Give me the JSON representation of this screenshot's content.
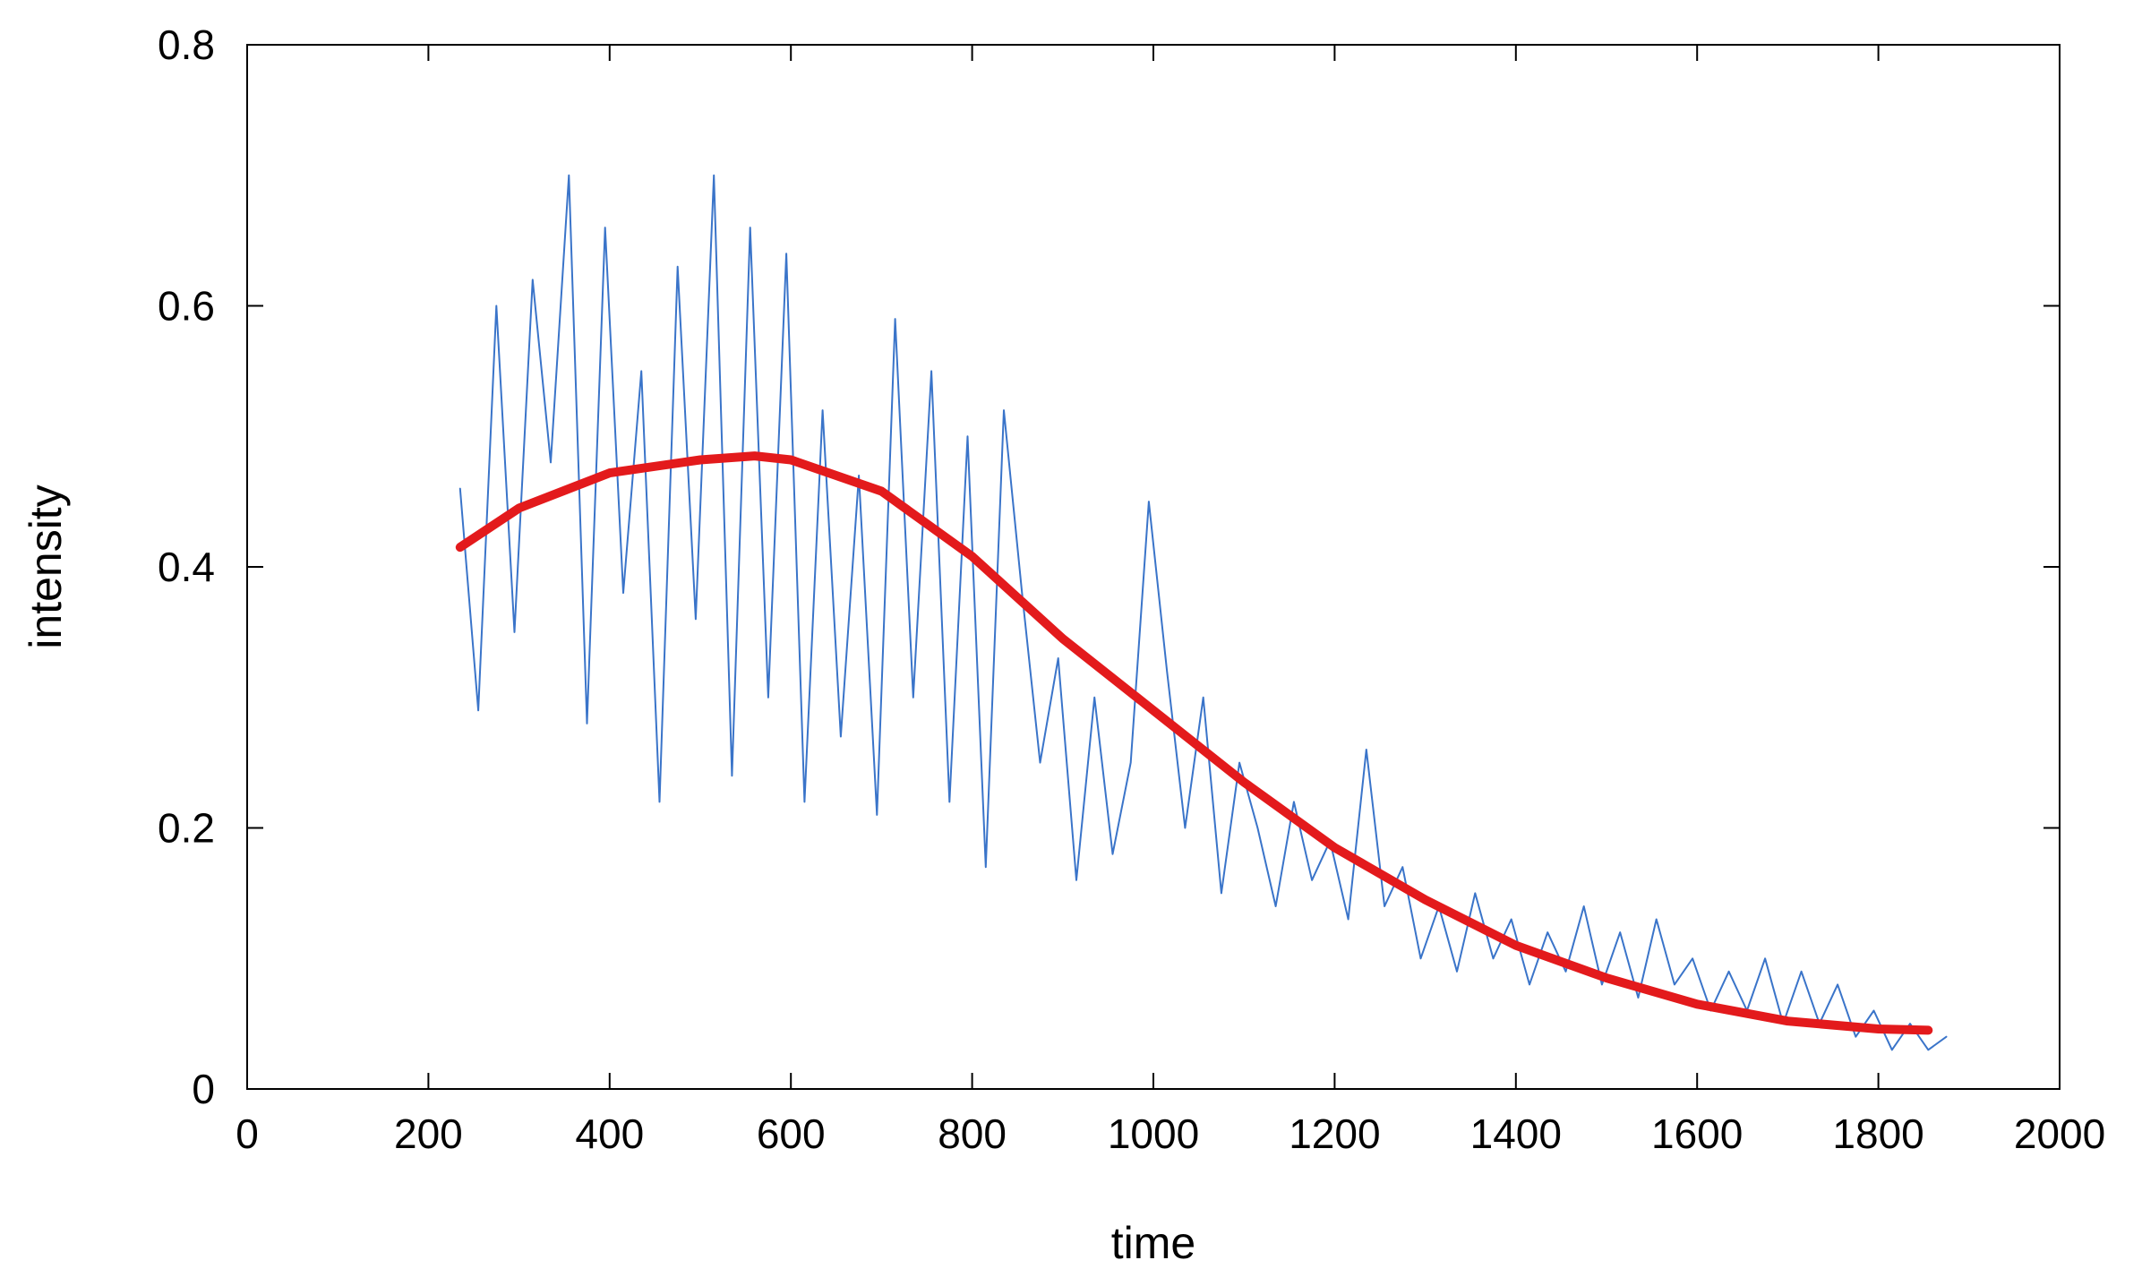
{
  "chart_data": {
    "type": "line",
    "xlabel": "time",
    "ylabel": "intensity",
    "xlim": [
      0,
      2000
    ],
    "xticks": [
      0,
      200,
      400,
      600,
      800,
      1000,
      1200,
      1400,
      1600,
      1800,
      2000
    ],
    "ylim": [
      0,
      0.8
    ],
    "yticks": [
      0,
      0.2,
      0.4,
      0.6,
      0.8
    ],
    "grid": false,
    "series": [
      {
        "color": "#3a74c9",
        "width": 2,
        "x": [
          235,
          255,
          275,
          295,
          315,
          335,
          355,
          375,
          395,
          415,
          435,
          455,
          475,
          495,
          515,
          535,
          555,
          575,
          595,
          615,
          635,
          655,
          675,
          695,
          715,
          735,
          755,
          775,
          795,
          815,
          835,
          855,
          875,
          895,
          915,
          935,
          955,
          975,
          995,
          1015,
          1035,
          1055,
          1075,
          1095,
          1115,
          1135,
          1155,
          1175,
          1195,
          1215,
          1235,
          1255,
          1275,
          1295,
          1315,
          1335,
          1355,
          1375,
          1395,
          1415,
          1435,
          1455,
          1475,
          1495,
          1515,
          1535,
          1555,
          1575,
          1595,
          1615,
          1635,
          1655,
          1675,
          1695,
          1715,
          1735,
          1755,
          1775,
          1795,
          1815,
          1835,
          1855,
          1875
        ],
        "values": [
          0.46,
          0.29,
          0.6,
          0.35,
          0.62,
          0.48,
          0.7,
          0.28,
          0.66,
          0.38,
          0.55,
          0.22,
          0.63,
          0.36,
          0.7,
          0.24,
          0.66,
          0.3,
          0.64,
          0.22,
          0.52,
          0.27,
          0.47,
          0.21,
          0.59,
          0.3,
          0.55,
          0.22,
          0.5,
          0.17,
          0.52,
          0.38,
          0.25,
          0.33,
          0.16,
          0.3,
          0.18,
          0.25,
          0.45,
          0.32,
          0.2,
          0.3,
          0.15,
          0.25,
          0.2,
          0.14,
          0.22,
          0.16,
          0.19,
          0.13,
          0.26,
          0.14,
          0.17,
          0.1,
          0.14,
          0.09,
          0.15,
          0.1,
          0.13,
          0.08,
          0.12,
          0.09,
          0.14,
          0.08,
          0.12,
          0.07,
          0.13,
          0.08,
          0.1,
          0.06,
          0.09,
          0.06,
          0.1,
          0.05,
          0.09,
          0.05,
          0.08,
          0.04,
          0.06,
          0.03,
          0.05,
          0.03,
          0.04
        ]
      },
      {
        "color": "#e31a1c",
        "width": 10,
        "x": [
          235,
          300,
          400,
          500,
          560,
          600,
          700,
          800,
          900,
          1000,
          1100,
          1200,
          1300,
          1400,
          1500,
          1600,
          1700,
          1800,
          1855
        ],
        "values": [
          0.415,
          0.445,
          0.472,
          0.482,
          0.485,
          0.482,
          0.458,
          0.408,
          0.345,
          0.29,
          0.235,
          0.185,
          0.145,
          0.11,
          0.085,
          0.065,
          0.052,
          0.046,
          0.045
        ]
      }
    ]
  }
}
